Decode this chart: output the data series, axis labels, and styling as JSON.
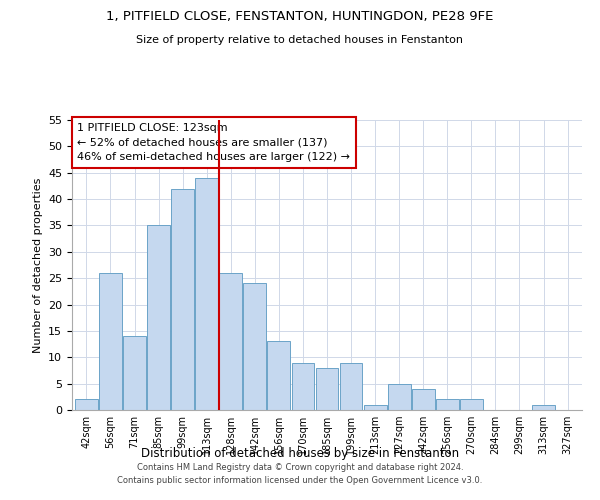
{
  "title_line1": "1, PITFIELD CLOSE, FENSTANTON, HUNTINGDON, PE28 9FE",
  "title_line2": "Size of property relative to detached houses in Fenstanton",
  "xlabel": "Distribution of detached houses by size in Fenstanton",
  "ylabel": "Number of detached properties",
  "bar_labels": [
    "42sqm",
    "56sqm",
    "71sqm",
    "85sqm",
    "99sqm",
    "113sqm",
    "128sqm",
    "142sqm",
    "156sqm",
    "170sqm",
    "185sqm",
    "199sqm",
    "213sqm",
    "227sqm",
    "242sqm",
    "256sqm",
    "270sqm",
    "284sqm",
    "299sqm",
    "313sqm",
    "327sqm"
  ],
  "bar_values": [
    2,
    26,
    14,
    35,
    42,
    44,
    26,
    24,
    13,
    9,
    8,
    9,
    1,
    5,
    4,
    2,
    2,
    0,
    0,
    1,
    0
  ],
  "bar_color": "#C5D8EF",
  "bar_edge_color": "#6BA3C8",
  "vline_color": "#CC0000",
  "annotation_title": "1 PITFIELD CLOSE: 123sqm",
  "annotation_line1": "← 52% of detached houses are smaller (137)",
  "annotation_line2": "46% of semi-detached houses are larger (122) →",
  "annotation_box_color": "#ffffff",
  "annotation_box_edge_color": "#CC0000",
  "ylim": [
    0,
    55
  ],
  "yticks": [
    0,
    5,
    10,
    15,
    20,
    25,
    30,
    35,
    40,
    45,
    50,
    55
  ],
  "footer_line1": "Contains HM Land Registry data © Crown copyright and database right 2024.",
  "footer_line2": "Contains public sector information licensed under the Open Government Licence v3.0."
}
